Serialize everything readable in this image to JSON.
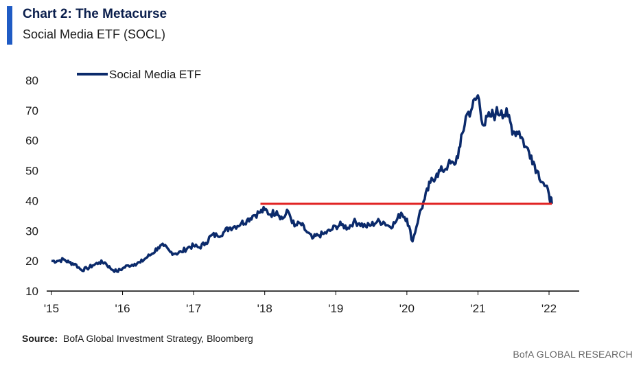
{
  "header": {
    "title": "Chart 2: The Metacurse",
    "subtitle": "Social Media ETF (SOCL)"
  },
  "footer": {
    "source_label": "Source:",
    "source_text": "BofA Global Investment Strategy, Bloomberg",
    "branding": "BofA GLOBAL RESEARCH"
  },
  "chart_data": {
    "type": "line",
    "title": "Chart 2: The Metacurse",
    "subtitle": "Social Media ETF (SOCL)",
    "xlabel": "",
    "ylabel": "",
    "xlim": [
      2015,
      2022.3
    ],
    "ylim": [
      10,
      80
    ],
    "yticks": [
      10,
      20,
      30,
      40,
      50,
      60,
      70,
      80
    ],
    "xticks": [
      {
        "value": 2015,
        "label": "'15"
      },
      {
        "value": 2016,
        "label": "'16"
      },
      {
        "value": 2017,
        "label": "'17"
      },
      {
        "value": 2018,
        "label": "'18"
      },
      {
        "value": 2019,
        "label": "'19"
      },
      {
        "value": 2020,
        "label": "'20"
      },
      {
        "value": 2021,
        "label": "'21"
      },
      {
        "value": 2022,
        "label": "'22"
      }
    ],
    "legend": {
      "position": "top-left",
      "entries": [
        "Social Media ETF"
      ]
    },
    "series": [
      {
        "name": "Social Media ETF",
        "color": "#0b2a6b",
        "x": [
          2015.0,
          2015.08,
          2015.17,
          2015.25,
          2015.33,
          2015.42,
          2015.5,
          2015.58,
          2015.67,
          2015.75,
          2015.83,
          2015.92,
          2016.0,
          2016.08,
          2016.17,
          2016.25,
          2016.33,
          2016.42,
          2016.5,
          2016.58,
          2016.67,
          2016.75,
          2016.83,
          2016.92,
          2017.0,
          2017.08,
          2017.17,
          2017.25,
          2017.33,
          2017.42,
          2017.5,
          2017.58,
          2017.67,
          2017.75,
          2017.83,
          2017.92,
          2018.0,
          2018.08,
          2018.17,
          2018.25,
          2018.33,
          2018.42,
          2018.5,
          2018.58,
          2018.67,
          2018.75,
          2018.83,
          2018.92,
          2019.0,
          2019.08,
          2019.17,
          2019.25,
          2019.33,
          2019.42,
          2019.5,
          2019.58,
          2019.67,
          2019.75,
          2019.83,
          2019.92,
          2020.0,
          2020.08,
          2020.17,
          2020.25,
          2020.33,
          2020.42,
          2020.5,
          2020.58,
          2020.67,
          2020.75,
          2020.83,
          2020.92,
          2021.0,
          2021.08,
          2021.17,
          2021.25,
          2021.33,
          2021.42,
          2021.5,
          2021.58,
          2021.67,
          2021.75,
          2021.83,
          2021.92,
          2022.0,
          2022.04
        ],
        "values": [
          20,
          20,
          20.5,
          19.5,
          19,
          17,
          17.5,
          18.5,
          19.5,
          19.5,
          17.5,
          16.5,
          17.5,
          18.5,
          19,
          19.5,
          21,
          22.5,
          24.5,
          25,
          23,
          22.5,
          23,
          24.5,
          25,
          24.5,
          26,
          28.5,
          28.5,
          29.5,
          31,
          31.5,
          32.5,
          33.5,
          35,
          36,
          37,
          35.5,
          36.5,
          34,
          36.5,
          31.5,
          32.5,
          30,
          27.5,
          28.5,
          29,
          30,
          31.5,
          32,
          31,
          33,
          32.5,
          31.5,
          32,
          33,
          33,
          31.5,
          32.5,
          36,
          34,
          26.5,
          35,
          40.5,
          46,
          49,
          50,
          52,
          52,
          58,
          68,
          71,
          75,
          65,
          68,
          69,
          70,
          68,
          63,
          63,
          58,
          55,
          50,
          46,
          42,
          39
        ]
      }
    ],
    "reference_lines": [
      {
        "type": "horizontal",
        "y": 39,
        "x_start": 2017.94,
        "x_end": 2022.04,
        "color": "#e02020"
      }
    ]
  }
}
